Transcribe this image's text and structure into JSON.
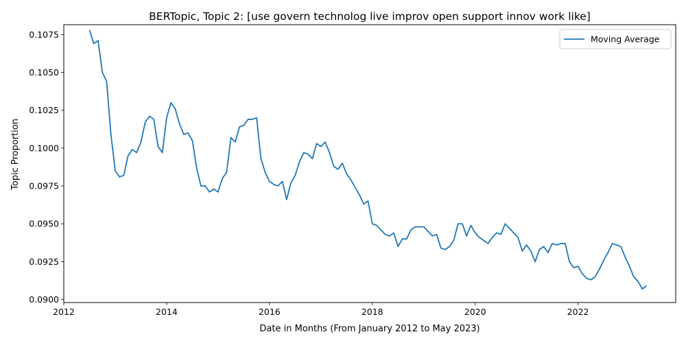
{
  "chart_data": {
    "type": "line",
    "title": "BERTopic, Topic 2: [use govern technolog live improv open support innov work like]",
    "xlabel": "Date in Months (From January 2012 to May 2023)",
    "ylabel": "Topic Proportion",
    "xlim": [
      2012.0,
      2023.9
    ],
    "ylim": [
      0.0898,
      0.10815
    ],
    "x_ticks": [
      2012,
      2014,
      2016,
      2018,
      2020,
      2022
    ],
    "x_tick_labels": [
      "2012",
      "2014",
      "2016",
      "2018",
      "2020",
      "2022"
    ],
    "y_ticks": [
      0.09,
      0.0925,
      0.095,
      0.0975,
      0.1,
      0.1025,
      0.105,
      0.1075
    ],
    "y_tick_labels": [
      "0.0900",
      "0.0925",
      "0.0950",
      "0.0975",
      "0.1000",
      "0.1025",
      "0.1050",
      "0.1075"
    ],
    "grid": false,
    "legend_position": "top-right",
    "color": "#1f77b4",
    "series": [
      {
        "name": "Moving Average",
        "x": [
          "2012-07",
          "2012-08",
          "2012-09",
          "2012-10",
          "2012-11",
          "2012-12",
          "2013-01",
          "2013-02",
          "2013-03",
          "2013-04",
          "2013-05",
          "2013-06",
          "2013-07",
          "2013-08",
          "2013-09",
          "2013-10",
          "2013-11",
          "2013-12",
          "2014-01",
          "2014-02",
          "2014-03",
          "2014-04",
          "2014-05",
          "2014-06",
          "2014-07",
          "2014-08",
          "2014-09",
          "2014-10",
          "2014-11",
          "2014-12",
          "2015-01",
          "2015-02",
          "2015-03",
          "2015-04",
          "2015-05",
          "2015-06",
          "2015-07",
          "2015-08",
          "2015-09",
          "2015-10",
          "2015-11",
          "2015-12",
          "2016-01",
          "2016-02",
          "2016-03",
          "2016-04",
          "2016-05",
          "2016-06",
          "2016-07",
          "2016-08",
          "2016-09",
          "2016-10",
          "2016-11",
          "2016-12",
          "2017-01",
          "2017-02",
          "2017-03",
          "2017-04",
          "2017-05",
          "2017-06",
          "2017-07",
          "2017-08",
          "2017-09",
          "2017-10",
          "2017-11",
          "2017-12",
          "2018-01",
          "2018-02",
          "2018-03",
          "2018-04",
          "2018-05",
          "2018-06",
          "2018-07",
          "2018-08",
          "2018-09",
          "2018-10",
          "2018-11",
          "2018-12",
          "2019-01",
          "2019-02",
          "2019-03",
          "2019-04",
          "2019-05",
          "2019-06",
          "2019-07",
          "2019-08",
          "2019-09",
          "2019-10",
          "2019-11",
          "2019-12",
          "2020-01",
          "2020-02",
          "2020-03",
          "2020-04",
          "2020-05",
          "2020-06",
          "2020-07",
          "2020-08",
          "2020-09",
          "2020-10",
          "2020-11",
          "2020-12",
          "2021-01",
          "2021-02",
          "2021-03",
          "2021-04",
          "2021-05",
          "2021-06",
          "2021-07",
          "2021-08",
          "2021-09",
          "2021-10",
          "2021-11",
          "2021-12",
          "2022-01",
          "2022-02",
          "2022-03",
          "2022-04",
          "2022-05",
          "2022-06",
          "2022-07",
          "2022-08",
          "2022-09",
          "2022-10",
          "2022-11",
          "2022-12",
          "2023-01",
          "2023-02",
          "2023-03",
          "2023-04",
          "2023-05"
        ],
        "values": [
          0.1078,
          0.1069,
          0.1071,
          0.105,
          0.1044,
          0.1009,
          0.0985,
          0.0981,
          0.0982,
          0.0995,
          0.0999,
          0.0997,
          0.1004,
          0.1017,
          0.1021,
          0.1019,
          0.1001,
          0.0997,
          0.102,
          0.103,
          0.1026,
          0.1016,
          0.1009,
          0.101,
          0.1005,
          0.0987,
          0.0975,
          0.0975,
          0.0971,
          0.0973,
          0.0971,
          0.098,
          0.0984,
          0.1007,
          0.1004,
          0.1014,
          0.1015,
          0.1019,
          0.1019,
          0.102,
          0.0993,
          0.0984,
          0.0978,
          0.0976,
          0.0975,
          0.0978,
          0.0966,
          0.0977,
          0.0982,
          0.0991,
          0.0997,
          0.0996,
          0.0993,
          0.1003,
          0.1001,
          0.1004,
          0.0997,
          0.0988,
          0.0986,
          0.099,
          0.0983,
          0.0979,
          0.0974,
          0.0969,
          0.0963,
          0.0965,
          0.095,
          0.0949,
          0.0946,
          0.0943,
          0.0942,
          0.0944,
          0.0935,
          0.094,
          0.094,
          0.0946,
          0.0948,
          0.0948,
          0.0948,
          0.0945,
          0.0942,
          0.0943,
          0.0934,
          0.0933,
          0.0935,
          0.0939,
          0.095,
          0.095,
          0.0942,
          0.0949,
          0.0944,
          0.0941,
          0.0939,
          0.0937,
          0.0941,
          0.0944,
          0.0943,
          0.095,
          0.0947,
          0.0944,
          0.0941,
          0.0932,
          0.0936,
          0.0932,
          0.0925,
          0.0933,
          0.0935,
          0.0931,
          0.0937,
          0.0936,
          0.0937,
          0.0937,
          0.0925,
          0.0921,
          0.0922,
          0.0917,
          0.0914,
          0.0913,
          0.0915,
          0.092,
          0.0926,
          0.0931,
          0.0937,
          0.0936,
          0.0935,
          0.0928,
          0.0922,
          0.0915,
          0.0912,
          0.0907,
          0.0909
        ]
      }
    ]
  }
}
